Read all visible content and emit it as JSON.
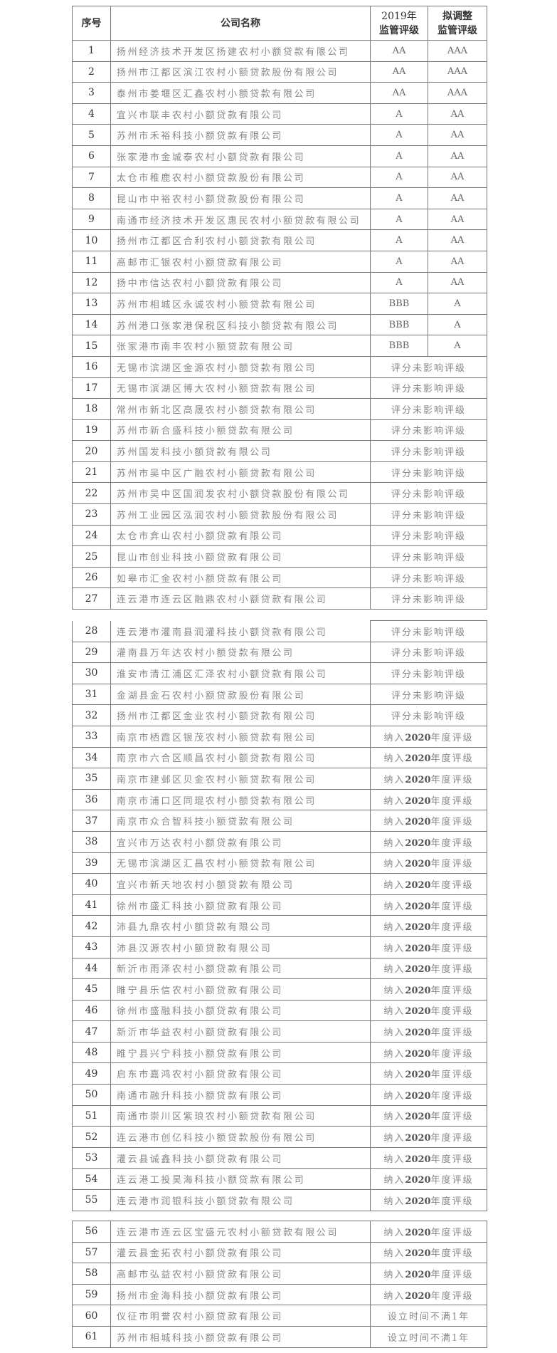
{
  "header": {
    "no": "序号",
    "company": "公司名称",
    "rating2019_line1": "2019年",
    "rating2019_line2": "监管评级",
    "proposed_line1": "拟调整",
    "proposed_line2": "监管评级"
  },
  "rows": [
    {
      "no": "1",
      "name": "扬州经济技术开发区扬建农村小额贷款有限公司",
      "r2019": "AA",
      "proposed": "AAA"
    },
    {
      "no": "2",
      "name": "扬州市江都区滨江农村小额贷款股份有限公司",
      "r2019": "AA",
      "proposed": "AAA"
    },
    {
      "no": "3",
      "name": "泰州市姜堰区汇鑫农村小额贷款有限公司",
      "r2019": "AA",
      "proposed": "AAA"
    },
    {
      "no": "4",
      "name": "宜兴市联丰农村小额贷款有限公司",
      "r2019": "A",
      "proposed": "AA"
    },
    {
      "no": "5",
      "name": "苏州市禾裕科技小额贷款有限公司",
      "r2019": "A",
      "proposed": "AA"
    },
    {
      "no": "6",
      "name": "张家港市金城泰农村小额贷款有限公司",
      "r2019": "A",
      "proposed": "AA"
    },
    {
      "no": "7",
      "name": "太仓市稚鹿农村小额贷款股份有限公司",
      "r2019": "A",
      "proposed": "AA"
    },
    {
      "no": "8",
      "name": "昆山市中裕农村小额贷款股份有限公司",
      "r2019": "A",
      "proposed": "AA"
    },
    {
      "no": "9",
      "name": "南通市经济技术开发区惠民农村小额贷款有限公司",
      "r2019": "A",
      "proposed": "AA"
    },
    {
      "no": "10",
      "name": "扬州市江都区合利农村小额贷款有限公司",
      "r2019": "A",
      "proposed": "AA"
    },
    {
      "no": "11",
      "name": "高邮市汇银农村小额贷款有限公司",
      "r2019": "A",
      "proposed": "AA"
    },
    {
      "no": "12",
      "name": "扬中市信达农村小额贷款有限公司",
      "r2019": "A",
      "proposed": "AA"
    },
    {
      "no": "13",
      "name": "苏州市相城区永诚农村小额贷款有限公司",
      "r2019": "BBB",
      "proposed": "A"
    },
    {
      "no": "14",
      "name": "苏州港口张家港保税区科技小额贷款有限公司",
      "r2019": "BBB",
      "proposed": "A"
    },
    {
      "no": "15",
      "name": "张家港市南丰农村小额贷款有限公司",
      "r2019": "BBB",
      "proposed": "A"
    },
    {
      "no": "16",
      "name": "无锡市滨湖区金源农村小额贷款有限公司",
      "note": "评分未影响评级"
    },
    {
      "no": "17",
      "name": "无锡市滨湖区博大农村小额贷款有限公司",
      "note": "评分未影响评级"
    },
    {
      "no": "18",
      "name": "常州市新北区高晟农村小额贷款有限公司",
      "note": "评分未影响评级"
    },
    {
      "no": "19",
      "name": "苏州市新合盛科技小额贷款有限公司",
      "note": "评分未影响评级"
    },
    {
      "no": "20",
      "name": "苏州国发科技小额贷款有限公司",
      "note": "评分未影响评级"
    },
    {
      "no": "21",
      "name": "苏州市吴中区广融农村小额贷款有限公司",
      "note": "评分未影响评级"
    },
    {
      "no": "22",
      "name": "苏州市吴中区国润发农村小额贷款股份有限公司",
      "note": "评分未影响评级"
    },
    {
      "no": "23",
      "name": "苏州工业园区泓润农村小额贷款股份有限公司",
      "note": "评分未影响评级"
    },
    {
      "no": "24",
      "name": "太仓市弇山农村小额贷款有限公司",
      "note": "评分未影响评级"
    },
    {
      "no": "25",
      "name": "昆山市创业科技小额贷款有限公司",
      "note": "评分未影响评级"
    },
    {
      "no": "26",
      "name": "如皋市汇金农村小额贷款有限公司",
      "note": "评分未影响评级"
    },
    {
      "no": "27",
      "name": "连云港市连云区融鼎农村小额贷款有限公司",
      "note": "评分未影响评级"
    },
    {
      "no": "28",
      "name": "连云港市灌南县润灌科技小额贷款有限公司",
      "note": "评分未影响评级"
    },
    {
      "no": "29",
      "name": "灌南县万年达农村小额贷款有限公司",
      "note": "评分未影响评级"
    },
    {
      "no": "30",
      "name": "淮安市清江浦区汇泽农村小额贷款有限公司",
      "note": "评分未影响评级"
    },
    {
      "no": "31",
      "name": "金湖县金石农村小额贷款股份有限公司",
      "note": "评分未影响评级"
    },
    {
      "no": "32",
      "name": "扬州市江都区金业农村小额贷款有限公司",
      "note": "评分未影响评级"
    },
    {
      "no": "33",
      "name": "南京市栖霞区银茂农村小额贷款有限公司",
      "note": "纳入2020年度评级"
    },
    {
      "no": "34",
      "name": "南京市六合区顺昌农村小额贷款有限公司",
      "note": "纳入2020年度评级"
    },
    {
      "no": "35",
      "name": "南京市建邺区贝金农村小额贷款有限公司",
      "note": "纳入2020年度评级"
    },
    {
      "no": "36",
      "name": "南京市浦口区同琨农村小额贷款有限公司",
      "note": "纳入2020年度评级"
    },
    {
      "no": "37",
      "name": "南京市众合智科技小额贷款有限公司",
      "note": "纳入2020年度评级"
    },
    {
      "no": "38",
      "name": "宜兴市万达农村小额贷款有限公司",
      "note": "纳入2020年度评级"
    },
    {
      "no": "39",
      "name": "无锡市滨湖区汇昌农村小额贷款有限公司",
      "note": "纳入2020年度评级"
    },
    {
      "no": "40",
      "name": "宜兴市新天地农村小额贷款有限公司",
      "note": "纳入2020年度评级"
    },
    {
      "no": "41",
      "name": "徐州市盛汇科技小额贷款有限公司",
      "note": "纳入2020年度评级"
    },
    {
      "no": "42",
      "name": "沛县九鼎农村小额贷款有限公司",
      "note": "纳入2020年度评级"
    },
    {
      "no": "43",
      "name": "沛县汉源农村小额贷款有限公司",
      "note": "纳入2020年度评级"
    },
    {
      "no": "44",
      "name": "新沂市雨泽农村小额贷款有限公司",
      "note": "纳入2020年度评级"
    },
    {
      "no": "45",
      "name": "睢宁县乐信农村小额贷款有限公司",
      "note": "纳入2020年度评级"
    },
    {
      "no": "46",
      "name": "徐州市盛融科技小额贷款有限公司",
      "note": "纳入2020年度评级"
    },
    {
      "no": "47",
      "name": "新沂市华益农村小额贷款有限公司",
      "note": "纳入2020年度评级"
    },
    {
      "no": "48",
      "name": "睢宁县兴宁科技小额贷款有限公司",
      "note": "纳入2020年度评级"
    },
    {
      "no": "49",
      "name": "启东市嘉鸿农村小额贷款有限公司",
      "note": "纳入2020年度评级"
    },
    {
      "no": "50",
      "name": "南通市融升科技小额贷款有限公司",
      "note": "纳入2020年度评级"
    },
    {
      "no": "51",
      "name": "南通市崇川区紫琅农村小额贷款有限公司",
      "note": "纳入2020年度评级"
    },
    {
      "no": "52",
      "name": "连云港市创亿科技小额贷款股份有限公司",
      "note": "纳入2020年度评级"
    },
    {
      "no": "53",
      "name": "灌云县诚鑫科技小额贷款有限公司",
      "note": "纳入2020年度评级"
    },
    {
      "no": "54",
      "name": "连云港工投昊海科技小额贷款有限公司",
      "note": "纳入2020年度评级"
    },
    {
      "no": "55",
      "name": "连云港市润银科技小额贷款有限公司",
      "note": "纳入2020年度评级"
    },
    {
      "no": "56",
      "name": "连云港市连云区宝盛元农村小额贷款有限公司",
      "note": "纳入2020年度评级"
    },
    {
      "no": "57",
      "name": "灌云县金拓农村小额贷款有限公司",
      "note": "纳入2020年度评级"
    },
    {
      "no": "58",
      "name": "高邮市弘益农村小额贷款有限公司",
      "note": "纳入2020年度评级"
    },
    {
      "no": "59",
      "name": "扬州市金海科技小额贷款有限公司",
      "note": "纳入2020年度评级"
    },
    {
      "no": "60",
      "name": "仪征市明誉农村小额贷款有限公司",
      "note": "设立时间不满1年"
    },
    {
      "no": "61",
      "name": "苏州市相城科技小额贷款有限公司",
      "note": "设立时间不满1年"
    }
  ]
}
